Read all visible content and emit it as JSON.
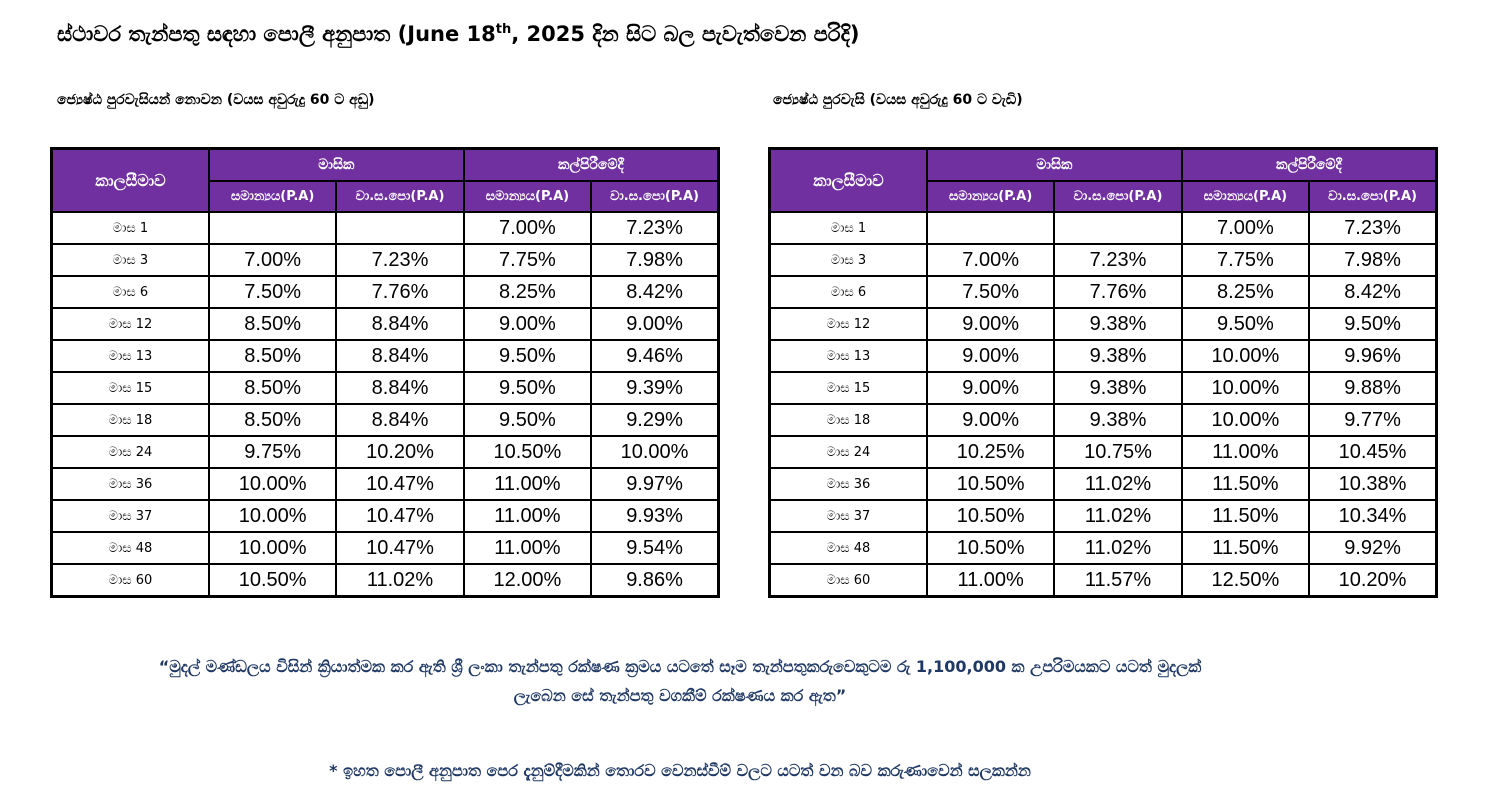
{
  "title": {
    "main": "ස්ථාවර තැන්පතු සඳහා පොලී අනුපාත (June 18",
    "sup": "th",
    "rest": ", 2025 දින සිට බල පැවැත්වෙන පරිදි)"
  },
  "non_senior": {
    "heading": "ජ්‍යෙෂ්ඨ පුරවැසියන් නොවන (වයස අවුරුදු 60 ට අඩු)",
    "header": {
      "term": "කාලසීමාව",
      "monthly": "මාසික",
      "maturity": "කල්පිරීමේදී",
      "normal": "සමාන්‍යය(P.A)",
      "aer": "වා.ස.පො(P.A)"
    },
    "rows": [
      {
        "term": "මාස 1",
        "m_normal": "",
        "m_aer": "",
        "t_normal": "7.00%",
        "t_aer": "7.23%"
      },
      {
        "term": "මාස 3",
        "m_normal": "7.00%",
        "m_aer": "7.23%",
        "t_normal": "7.75%",
        "t_aer": "7.98%"
      },
      {
        "term": "මාස 6",
        "m_normal": "7.50%",
        "m_aer": "7.76%",
        "t_normal": "8.25%",
        "t_aer": "8.42%"
      },
      {
        "term": "මාස 12",
        "m_normal": "8.50%",
        "m_aer": "8.84%",
        "t_normal": "9.00%",
        "t_aer": "9.00%"
      },
      {
        "term": "මාස 13",
        "m_normal": "8.50%",
        "m_aer": "8.84%",
        "t_normal": "9.50%",
        "t_aer": "9.46%"
      },
      {
        "term": "මාස 15",
        "m_normal": "8.50%",
        "m_aer": "8.84%",
        "t_normal": "9.50%",
        "t_aer": "9.39%"
      },
      {
        "term": "මාස 18",
        "m_normal": "8.50%",
        "m_aer": "8.84%",
        "t_normal": "9.50%",
        "t_aer": "9.29%"
      },
      {
        "term": "මාස 24",
        "m_normal": "9.75%",
        "m_aer": "10.20%",
        "t_normal": "10.50%",
        "t_aer": "10.00%"
      },
      {
        "term": "මාස 36",
        "m_normal": "10.00%",
        "m_aer": "10.47%",
        "t_normal": "11.00%",
        "t_aer": "9.97%"
      },
      {
        "term": "මාස 37",
        "m_normal": "10.00%",
        "m_aer": "10.47%",
        "t_normal": "11.00%",
        "t_aer": "9.93%"
      },
      {
        "term": "මාස 48",
        "m_normal": "10.00%",
        "m_aer": "10.47%",
        "t_normal": "11.00%",
        "t_aer": "9.54%"
      },
      {
        "term": "මාස 60",
        "m_normal": "10.50%",
        "m_aer": "11.02%",
        "t_normal": "12.00%",
        "t_aer": "9.86%"
      }
    ]
  },
  "senior": {
    "heading": "ජ්‍යෙෂ්ඨ පුරවැසි (වයස අවුරුදු 60 ට වැඩි)",
    "header": {
      "term": "කාලසීමාව",
      "monthly": "මාසික",
      "maturity": "කල්පිරීමේදී",
      "normal": "සමාන්‍යය(P.A)",
      "aer": "වා.ස.පො(P.A)"
    },
    "rows": [
      {
        "term": "මාස 1",
        "m_normal": "",
        "m_aer": "",
        "t_normal": "7.00%",
        "t_aer": "7.23%"
      },
      {
        "term": "මාස 3",
        "m_normal": "7.00%",
        "m_aer": "7.23%",
        "t_normal": "7.75%",
        "t_aer": "7.98%"
      },
      {
        "term": "මාස 6",
        "m_normal": "7.50%",
        "m_aer": "7.76%",
        "t_normal": "8.25%",
        "t_aer": "8.42%"
      },
      {
        "term": "මාස 12",
        "m_normal": "9.00%",
        "m_aer": "9.38%",
        "t_normal": "9.50%",
        "t_aer": "9.50%"
      },
      {
        "term": "මාස 13",
        "m_normal": "9.00%",
        "m_aer": "9.38%",
        "t_normal": "10.00%",
        "t_aer": "9.96%"
      },
      {
        "term": "මාස 15",
        "m_normal": "9.00%",
        "m_aer": "9.38%",
        "t_normal": "10.00%",
        "t_aer": "9.88%"
      },
      {
        "term": "මාස 18",
        "m_normal": "9.00%",
        "m_aer": "9.38%",
        "t_normal": "10.00%",
        "t_aer": "9.77%"
      },
      {
        "term": "මාස 24",
        "m_normal": "10.25%",
        "m_aer": "10.75%",
        "t_normal": "11.00%",
        "t_aer": "10.45%"
      },
      {
        "term": "මාස 36",
        "m_normal": "10.50%",
        "m_aer": "11.02%",
        "t_normal": "11.50%",
        "t_aer": "10.38%"
      },
      {
        "term": "මාස 37",
        "m_normal": "10.50%",
        "m_aer": "11.02%",
        "t_normal": "11.50%",
        "t_aer": "10.34%"
      },
      {
        "term": "මාස 48",
        "m_normal": "10.50%",
        "m_aer": "11.02%",
        "t_normal": "11.50%",
        "t_aer": "9.92%"
      },
      {
        "term": "මාස 60",
        "m_normal": "11.00%",
        "m_aer": "11.57%",
        "t_normal": "12.50%",
        "t_aer": "10.20%"
      }
    ]
  },
  "notes": {
    "insurance_line1": "“මුදල් මණ්ඩලය විසින් ක්‍රියාත්මක කර ඇති ශ්‍රී ලංකා තැන්පතු රක්ෂණ ක්‍රමය යටතේ සෑම තැන්පතුකරුවෙකුටම රු 1,100,000 ක උපරිමයකට යටත් මුදලක්",
    "insurance_line2": "ලැබෙන සේ තැන්පතු වගකීම් රක්ෂණය කර ඇත”",
    "disclaimer": "* ඉහත පොලී අනුපාත පෙර දැනුම්දීමකින් තොරව වෙනස්වීම් වලට යටත් වන බව කරුණාවෙන් සලකන්න"
  },
  "colors": {
    "header_bg": "#7030A0",
    "note_text": "#1F3864"
  }
}
